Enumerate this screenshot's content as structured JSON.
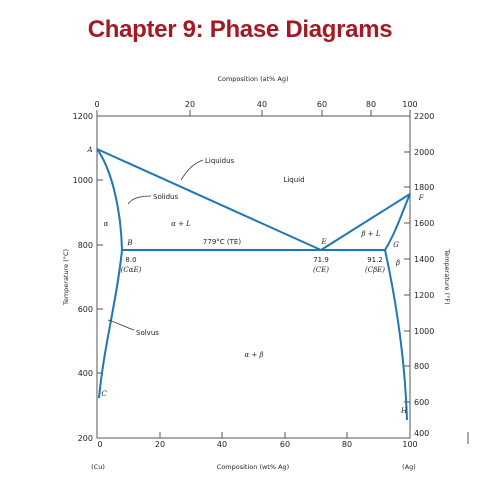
{
  "title": "Chapter 9:  Phase Diagrams",
  "diagram": {
    "top_axis_label": "Composition (at% Ag)",
    "bottom_axis_label": "Composition (wt% Ag)",
    "left_axis_label": "Temperature (°C)",
    "right_axis_label": "Temperature (°F)",
    "left_end_label": "(Cu)",
    "right_end_label": "(Ag)",
    "top_ticks": [
      "0",
      "20",
      "40",
      "60",
      "80",
      "100"
    ],
    "bottom_ticks": [
      "0",
      "20",
      "40",
      "60",
      "80",
      "100"
    ],
    "left_ticks": [
      "1200",
      "1000",
      "800",
      "600",
      "400",
      "200"
    ],
    "right_ticks": [
      "2200",
      "2000",
      "1800",
      "1600",
      "1400",
      "1200",
      "1000",
      "800",
      "600",
      "400"
    ],
    "curve_labels": {
      "liquidus": "Liquidus",
      "solidus": "Solidus",
      "solvus": "Solvus"
    },
    "region_labels": {
      "liquid": "Liquid",
      "alpha": "α",
      "beta": "β",
      "alpha_plus_L": "α + L",
      "beta_plus_L": "β + L",
      "alpha_plus_beta": "α + β"
    },
    "points": {
      "A": "A",
      "B": "B",
      "C": "C",
      "E": "E",
      "F": "F",
      "G": "G",
      "H": "H"
    },
    "eutectic_temperature_label": "779°C (TE)",
    "composition_labels": {
      "alpha_E_value": "8.0",
      "alpha_E_symbol": "(CαE)",
      "eutectic_value": "71.9",
      "eutectic_symbol": "(CE)",
      "beta_E_value": "91.2",
      "beta_E_symbol": "(CβE)"
    },
    "colors": {
      "title": "#a31a25",
      "phase_lines": "#1f77b4",
      "axes": "#555555"
    }
  }
}
